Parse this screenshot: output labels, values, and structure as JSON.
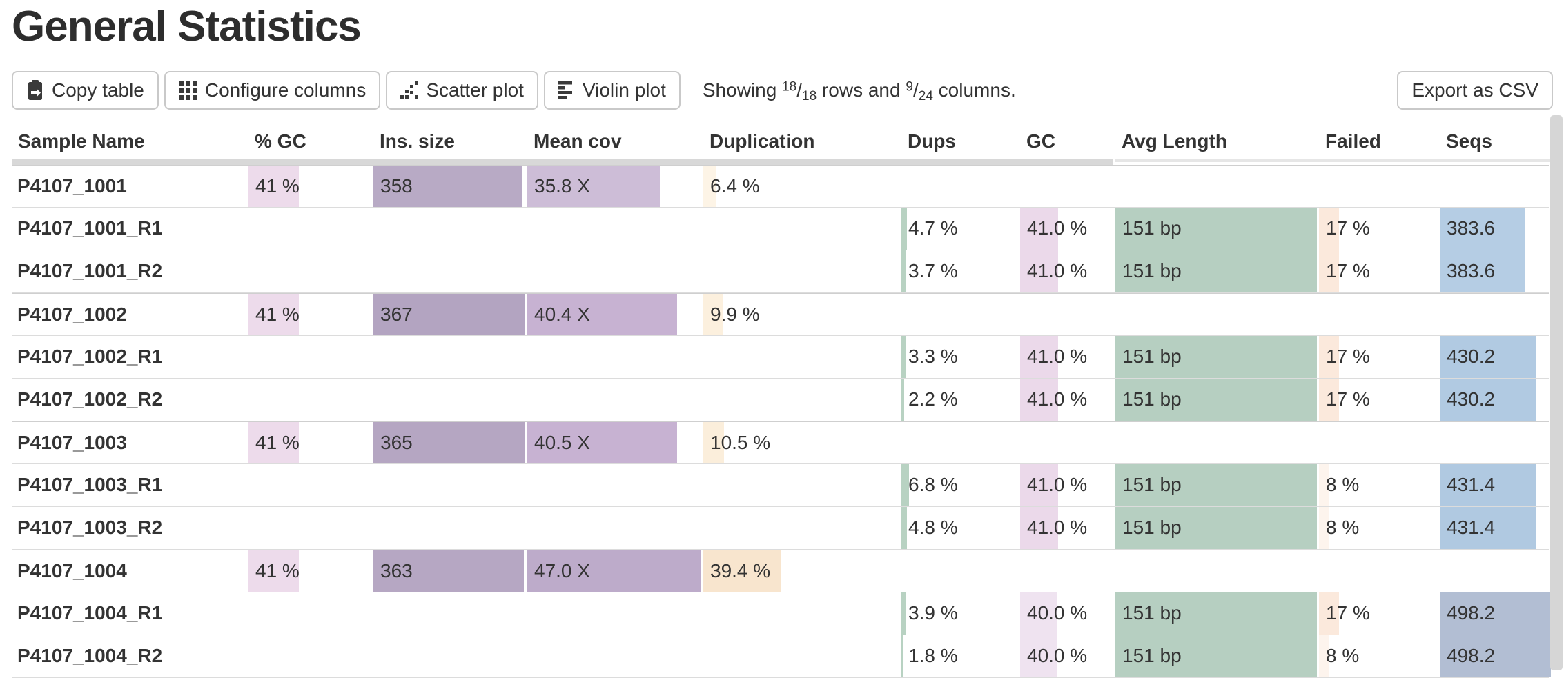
{
  "page": {
    "title": "General Statistics"
  },
  "toolbar": {
    "buttons": [
      {
        "id": "copy-table",
        "label": "Copy table"
      },
      {
        "id": "configure-columns",
        "label": "Configure columns"
      },
      {
        "id": "scatter-plot",
        "label": "Scatter plot"
      },
      {
        "id": "violin-plot",
        "label": "Violin plot"
      }
    ],
    "showing": {
      "prefix": "Showing ",
      "rows_shown": "18",
      "rows_total": "18",
      "middle": " rows and ",
      "cols_shown": "9",
      "cols_total": "24",
      "suffix": " columns."
    },
    "export_label": "Export as CSV"
  },
  "ui_colors": {
    "header_bar": "#d8d8d8",
    "header_bar_light": "#e6e6e6",
    "row_border": "#dcdcdc",
    "group_border": "#cfcfcf",
    "scrollbar": "#d6d6d6",
    "button_border": "#c9c9c9",
    "text": "#333333"
  },
  "table": {
    "columns": [
      {
        "key": "sample",
        "label": "Sample Name"
      },
      {
        "key": "gc_pct",
        "label": "% GC"
      },
      {
        "key": "ins",
        "label": "Ins. size"
      },
      {
        "key": "cov",
        "label": "Mean cov"
      },
      {
        "key": "dup",
        "label": "Duplication"
      },
      {
        "key": "dups",
        "label": "Dups"
      },
      {
        "key": "gc",
        "label": "GC"
      },
      {
        "key": "len",
        "label": "Avg Length"
      },
      {
        "key": "failed",
        "label": "Failed"
      },
      {
        "key": "seqs",
        "label": "Seqs"
      }
    ],
    "rows": [
      {
        "name": "P4107_1001",
        "group": true,
        "cells": {
          "gc_pct": {
            "text": "41 %",
            "pct": 41,
            "color": "#eddbeb"
          },
          "ins": {
            "text": "358",
            "pct": 97.5,
            "color": "#b8aac5"
          },
          "cov": {
            "text": "35.8 X",
            "pct": 76.2,
            "color": "#cdbdd7"
          },
          "dup": {
            "text": "6.4 %",
            "pct": 6.4,
            "color": "#fdf4e6"
          }
        }
      },
      {
        "name": "P4107_1001_R1",
        "group": false,
        "cells": {
          "dups": {
            "text": "4.7 %",
            "pct": 4.7,
            "color": "#b8d2c2"
          },
          "gc": {
            "text": "41.0 %",
            "pct": 41,
            "color": "#ebd9ea"
          },
          "len": {
            "text": "151 bp",
            "pct": 100,
            "color": "#b6cfc1"
          },
          "failed": {
            "text": "17 %",
            "pct": 17,
            "color": "#fbe9dc"
          },
          "seqs": {
            "text": "383.6",
            "pct": 77,
            "color": "#b5cde4"
          }
        }
      },
      {
        "name": "P4107_1001_R2",
        "group": false,
        "cells": {
          "dups": {
            "text": "3.7 %",
            "pct": 3.7,
            "color": "#b8d2c2"
          },
          "gc": {
            "text": "41.0 %",
            "pct": 41,
            "color": "#ebd9ea"
          },
          "len": {
            "text": "151 bp",
            "pct": 100,
            "color": "#b6cfc1"
          },
          "failed": {
            "text": "17 %",
            "pct": 17,
            "color": "#fbe9dc"
          },
          "seqs": {
            "text": "383.6",
            "pct": 77,
            "color": "#b5cde4"
          }
        }
      },
      {
        "name": "P4107_1002",
        "group": true,
        "cells": {
          "gc_pct": {
            "text": "41 %",
            "pct": 41,
            "color": "#eddbeb"
          },
          "ins": {
            "text": "367",
            "pct": 100,
            "color": "#b3a4c1"
          },
          "cov": {
            "text": "40.4 X",
            "pct": 86,
            "color": "#c7b2d2"
          },
          "dup": {
            "text": "9.9 %",
            "pct": 9.9,
            "color": "#fcf0de"
          }
        }
      },
      {
        "name": "P4107_1002_R1",
        "group": false,
        "cells": {
          "dups": {
            "text": "3.3 %",
            "pct": 3.3,
            "color": "#b8d2c2"
          },
          "gc": {
            "text": "41.0 %",
            "pct": 41,
            "color": "#ebd9ea"
          },
          "len": {
            "text": "151 bp",
            "pct": 100,
            "color": "#b6cfc1"
          },
          "failed": {
            "text": "17 %",
            "pct": 17,
            "color": "#fbe9dc"
          },
          "seqs": {
            "text": "430.2",
            "pct": 86.4,
            "color": "#b1cae2"
          }
        }
      },
      {
        "name": "P4107_1002_R2",
        "group": false,
        "cells": {
          "dups": {
            "text": "2.2 %",
            "pct": 2.2,
            "color": "#b8d2c2"
          },
          "gc": {
            "text": "41.0 %",
            "pct": 41,
            "color": "#ebd9ea"
          },
          "len": {
            "text": "151 bp",
            "pct": 100,
            "color": "#b6cfc1"
          },
          "failed": {
            "text": "17 %",
            "pct": 17,
            "color": "#fbe9dc"
          },
          "seqs": {
            "text": "430.2",
            "pct": 86.4,
            "color": "#b1cae2"
          }
        }
      },
      {
        "name": "P4107_1003",
        "group": true,
        "cells": {
          "gc_pct": {
            "text": "41 %",
            "pct": 41,
            "color": "#eddbeb"
          },
          "ins": {
            "text": "365",
            "pct": 99.5,
            "color": "#b5a6c2"
          },
          "cov": {
            "text": "40.5 X",
            "pct": 86.2,
            "color": "#c7b2d2"
          },
          "dup": {
            "text": "10.5 %",
            "pct": 10.5,
            "color": "#fbeedb"
          }
        }
      },
      {
        "name": "P4107_1003_R1",
        "group": false,
        "cells": {
          "dups": {
            "text": "6.8 %",
            "pct": 6.8,
            "color": "#b8d2c2"
          },
          "gc": {
            "text": "41.0 %",
            "pct": 41,
            "color": "#ebd9ea"
          },
          "len": {
            "text": "151 bp",
            "pct": 100,
            "color": "#b6cfc1"
          },
          "failed": {
            "text": "8 %",
            "pct": 8,
            "color": "#fdf4ed"
          },
          "seqs": {
            "text": "431.4",
            "pct": 86.6,
            "color": "#b0c9e1"
          }
        }
      },
      {
        "name": "P4107_1003_R2",
        "group": false,
        "cells": {
          "dups": {
            "text": "4.8 %",
            "pct": 4.8,
            "color": "#b8d2c2"
          },
          "gc": {
            "text": "41.0 %",
            "pct": 41,
            "color": "#ebd9ea"
          },
          "len": {
            "text": "151 bp",
            "pct": 100,
            "color": "#b6cfc1"
          },
          "failed": {
            "text": "8 %",
            "pct": 8,
            "color": "#fdf4ed"
          },
          "seqs": {
            "text": "431.4",
            "pct": 86.6,
            "color": "#b0c9e1"
          }
        }
      },
      {
        "name": "P4107_1004",
        "group": true,
        "cells": {
          "gc_pct": {
            "text": "41 %",
            "pct": 41,
            "color": "#eddbeb"
          },
          "ins": {
            "text": "363",
            "pct": 98.9,
            "color": "#b6a7c3"
          },
          "cov": {
            "text": "47.0 X",
            "pct": 100,
            "color": "#bdabca"
          },
          "dup": {
            "text": "39.4 %",
            "pct": 39.4,
            "color": "#f8e5ce"
          }
        }
      },
      {
        "name": "P4107_1004_R1",
        "group": false,
        "cells": {
          "dups": {
            "text": "3.9 %",
            "pct": 3.9,
            "color": "#b8d2c2"
          },
          "gc": {
            "text": "40.0 %",
            "pct": 40,
            "color": "#efe3f0"
          },
          "len": {
            "text": "151 bp",
            "pct": 100,
            "color": "#b6cfc1"
          },
          "failed": {
            "text": "17 %",
            "pct": 17,
            "color": "#fbe9dc"
          },
          "seqs": {
            "text": "498.2",
            "pct": 100,
            "color": "#b2bed3"
          }
        }
      },
      {
        "name": "P4107_1004_R2",
        "group": false,
        "cells": {
          "dups": {
            "text": "1.8 %",
            "pct": 1.8,
            "color": "#b8d2c2"
          },
          "gc": {
            "text": "40.0 %",
            "pct": 40,
            "color": "#efe3f0"
          },
          "len": {
            "text": "151 bp",
            "pct": 100,
            "color": "#b6cfc1"
          },
          "failed": {
            "text": "8 %",
            "pct": 8,
            "color": "#fdf4ed"
          },
          "seqs": {
            "text": "498.2",
            "pct": 100,
            "color": "#b2bed3"
          }
        }
      }
    ]
  }
}
